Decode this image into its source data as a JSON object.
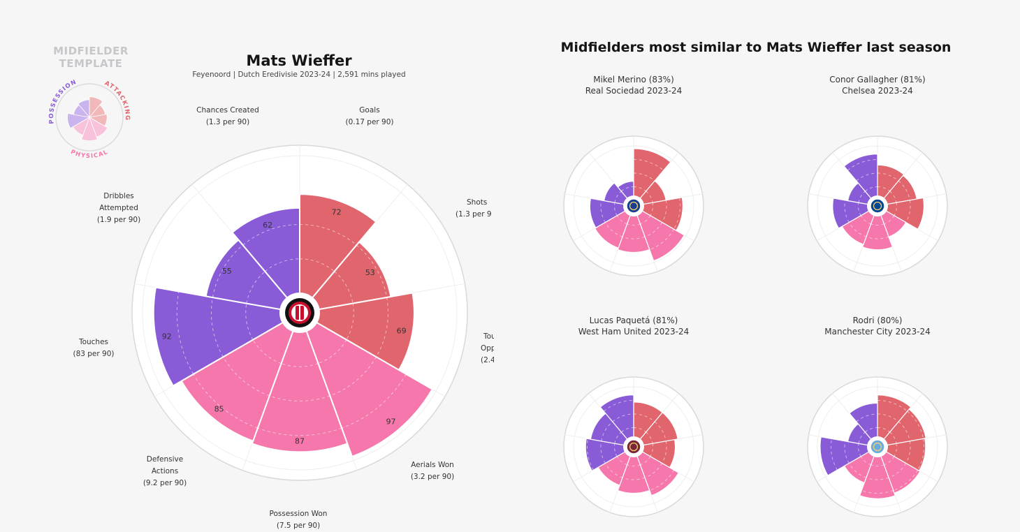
{
  "colors": {
    "attacking": "#e0656d",
    "possession": "#8a5bd6",
    "physical": "#f577ab",
    "background": "#f6f6f6"
  },
  "legend": {
    "title_line1": "MIDFIELDER",
    "title_line2": "TEMPLATE",
    "attacking_label": "ATTACKING",
    "possession_label": "POSSESSION",
    "physical_label": "PHYSICAL"
  },
  "main": {
    "title": "Mats Wieffer",
    "subtitle": "Feyenoord | Dutch Eredivisie 2023-24 | 2,591 mins played",
    "club_badge": "feyenoord-badge-icon"
  },
  "chart_data": {
    "type": "polar-bar",
    "title": "Mats Wieffer",
    "rmax": 100,
    "stats": [
      {
        "name": "Goals",
        "per90": "(0.17 per 90)",
        "percentile": 72,
        "group": "attacking"
      },
      {
        "name": "Shots",
        "per90": "(1.3 per 9",
        "percentile": 53,
        "group": "attacking"
      },
      {
        "name": "Tou Oppo",
        "per90": "(2.4",
        "percentile": 69,
        "group": "attacking"
      },
      {
        "name": "Aerials Won",
        "per90": "(3.2 per 90)",
        "percentile": 97,
        "group": "physical"
      },
      {
        "name": "Possession Won",
        "per90": "(7.5 per 90)",
        "percentile": 87,
        "group": "physical"
      },
      {
        "name": "Defensive Actions",
        "per90": "(9.2 per 90)",
        "percentile": 85,
        "group": "physical"
      },
      {
        "name": "Touches",
        "per90": "(83 per 90)",
        "percentile": 92,
        "group": "possession"
      },
      {
        "name": "Dribbles Attempted",
        "per90": "(1.9 per 90)",
        "percentile": 55,
        "group": "possession"
      },
      {
        "name": "Chances Created",
        "per90": "(1.3 per 90)",
        "percentile": 62,
        "group": "possession"
      }
    ]
  },
  "stat_labels": {
    "goals": [
      "Goals",
      "(0.17 per 90)"
    ],
    "shots": [
      "Shots",
      "(1.3 per 9"
    ],
    "touches_opp": [
      "Tou",
      "Oppo",
      "(2.4"
    ],
    "aerials": [
      "Aerials Won",
      "(3.2 per 90)"
    ],
    "possession_won": [
      "Possession Won",
      "(7.5 per 90)"
    ],
    "defensive": [
      "Defensive",
      "Actions",
      "(9.2 per 90)"
    ],
    "touches": [
      "Touches",
      "(83 per 90)"
    ],
    "dribbles": [
      "Dribbles",
      "Attempted",
      "(1.9 per 90)"
    ],
    "chances": [
      "Chances Created",
      "(1.3 per 90)"
    ]
  },
  "similar": {
    "title": "Midfielders most similar to Mats Wieffer last season",
    "players": [
      {
        "line1": "Mikel Merino (83%)",
        "line2": "Real Sociedad 2023-24",
        "badge": "real-sociedad-badge-icon",
        "values": [
          95,
          50,
          80,
          97,
          75,
          72,
          70,
          45,
          35
        ]
      },
      {
        "line1": "Conor Gallagher (81%)",
        "line2": "Chelsea 2023-24",
        "badge": "chelsea-badge-icon",
        "values": [
          65,
          63,
          75,
          50,
          70,
          65,
          72,
          45,
          85
        ]
      },
      {
        "line1": "Lucas Paquetá (81%)",
        "line2": "West Ham United 2023-24",
        "badge": "west-ham-badge-icon",
        "values": [
          72,
          72,
          66,
          85,
          75,
          65,
          78,
          70,
          85
        ]
      },
      {
        "line1": "Rodri (80%)",
        "line2": "Manchester City 2023-24",
        "badge": "manchester-city-badge-icon",
        "values": [
          85,
          80,
          78,
          80,
          85,
          60,
          95,
          45,
          70
        ]
      }
    ]
  }
}
